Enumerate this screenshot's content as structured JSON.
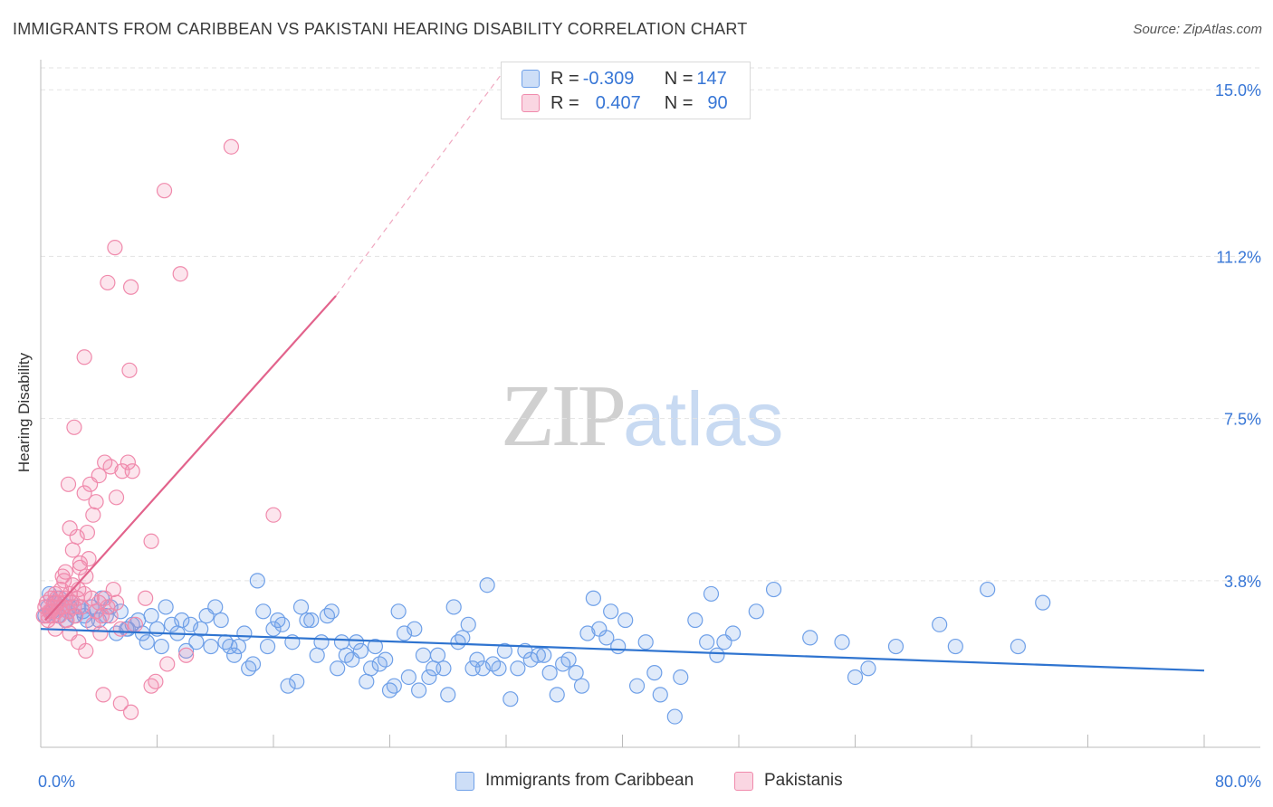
{
  "title": "IMMIGRANTS FROM CARIBBEAN VS PAKISTANI HEARING DISABILITY CORRELATION CHART",
  "source": "Source: ZipAtlas.com",
  "watermark": {
    "zip": "ZIP",
    "atlas": "atlas"
  },
  "colors": {
    "blue": "#6fa0e8",
    "blue_line": "#2f74d0",
    "pink": "#f08aac",
    "pink_line": "#e2638c",
    "axis_text": "#3776d6"
  },
  "legend": {
    "rows": [
      {
        "r_label": "R = ",
        "r_value": "-0.309",
        "n_label": "N = ",
        "n_value": "147"
      },
      {
        "r_label": "R = ",
        "r_value": "0.407",
        "n_label": "N = ",
        "n_value": "90"
      }
    ]
  },
  "bottom_legend": [
    "Immigrants from Caribbean",
    "Pakistanis"
  ],
  "chart_data": {
    "type": "scatter",
    "xlabel": "",
    "ylabel": "Hearing Disability",
    "xlim": [
      0,
      80
    ],
    "ylim": [
      0,
      15.5
    ],
    "x_tick_labels": [
      "0.0%",
      "80.0%"
    ],
    "y_ticks": [
      3.8,
      7.5,
      11.2,
      15.0
    ],
    "y_tick_labels": [
      "3.8%",
      "7.5%",
      "11.2%",
      "15.0%"
    ],
    "grid": true,
    "series": [
      {
        "name": "Immigrants from Caribbean",
        "color": "#6fa0e8",
        "r": -0.309,
        "n": 147,
        "trend": {
          "x": [
            0,
            80
          ],
          "y": [
            2.7,
            1.75
          ],
          "dashed_after": null
        },
        "points": [
          [
            0.3,
            3.0
          ],
          [
            0.5,
            3.2
          ],
          [
            0.6,
            3.5
          ],
          [
            0.8,
            3.1
          ],
          [
            1.0,
            3.3
          ],
          [
            1.2,
            3.0
          ],
          [
            1.3,
            3.4
          ],
          [
            1.5,
            3.2
          ],
          [
            1.7,
            2.9
          ],
          [
            1.9,
            3.1
          ],
          [
            2.1,
            3.3
          ],
          [
            2.3,
            3.0
          ],
          [
            2.6,
            3.2
          ],
          [
            2.9,
            3.1
          ],
          [
            3.2,
            2.9
          ],
          [
            3.5,
            3.2
          ],
          [
            3.8,
            3.1
          ],
          [
            4.2,
            3.4
          ],
          [
            4.5,
            3.0
          ],
          [
            4.8,
            3.2
          ],
          [
            5.2,
            2.6
          ],
          [
            5.5,
            3.1
          ],
          [
            5.9,
            2.7
          ],
          [
            6.3,
            2.8
          ],
          [
            6.7,
            2.9
          ],
          [
            7.0,
            2.6
          ],
          [
            7.3,
            2.4
          ],
          [
            7.6,
            3.0
          ],
          [
            8.0,
            2.7
          ],
          [
            8.3,
            2.3
          ],
          [
            8.6,
            3.2
          ],
          [
            9.0,
            2.8
          ],
          [
            9.4,
            2.6
          ],
          [
            9.7,
            2.9
          ],
          [
            10.0,
            2.2
          ],
          [
            10.3,
            2.8
          ],
          [
            10.7,
            2.4
          ],
          [
            11.0,
            2.7
          ],
          [
            11.4,
            3.0
          ],
          [
            11.7,
            2.3
          ],
          [
            12.0,
            3.2
          ],
          [
            12.4,
            2.9
          ],
          [
            12.7,
            2.4
          ],
          [
            13.0,
            2.3
          ],
          [
            13.3,
            2.1
          ],
          [
            13.6,
            2.3
          ],
          [
            14.0,
            2.6
          ],
          [
            14.3,
            1.8
          ],
          [
            14.6,
            1.9
          ],
          [
            14.9,
            3.8
          ],
          [
            15.3,
            3.1
          ],
          [
            15.6,
            2.3
          ],
          [
            16.0,
            2.7
          ],
          [
            16.3,
            2.9
          ],
          [
            16.6,
            2.8
          ],
          [
            17.0,
            1.4
          ],
          [
            17.3,
            2.4
          ],
          [
            17.6,
            1.5
          ],
          [
            17.9,
            3.2
          ],
          [
            18.3,
            2.9
          ],
          [
            18.6,
            2.9
          ],
          [
            19.0,
            2.1
          ],
          [
            19.3,
            2.4
          ],
          [
            19.7,
            3.0
          ],
          [
            20.0,
            3.1
          ],
          [
            20.4,
            1.8
          ],
          [
            20.7,
            2.4
          ],
          [
            21.0,
            2.1
          ],
          [
            21.4,
            2.0
          ],
          [
            21.7,
            2.4
          ],
          [
            22.0,
            2.2
          ],
          [
            22.4,
            1.5
          ],
          [
            22.7,
            1.8
          ],
          [
            23.0,
            2.3
          ],
          [
            23.3,
            1.9
          ],
          [
            23.7,
            2.0
          ],
          [
            24.0,
            1.3
          ],
          [
            24.3,
            1.4
          ],
          [
            24.6,
            3.1
          ],
          [
            25.0,
            2.6
          ],
          [
            25.3,
            1.6
          ],
          [
            25.7,
            2.7
          ],
          [
            26.0,
            1.3
          ],
          [
            26.3,
            2.1
          ],
          [
            26.7,
            1.6
          ],
          [
            27.0,
            1.8
          ],
          [
            27.3,
            2.1
          ],
          [
            27.7,
            1.8
          ],
          [
            28.0,
            1.2
          ],
          [
            28.4,
            3.2
          ],
          [
            28.7,
            2.4
          ],
          [
            29.0,
            2.5
          ],
          [
            29.4,
            2.8
          ],
          [
            29.7,
            1.8
          ],
          [
            30.0,
            2.0
          ],
          [
            30.4,
            1.8
          ],
          [
            30.7,
            3.7
          ],
          [
            31.1,
            1.9
          ],
          [
            31.5,
            1.8
          ],
          [
            31.9,
            2.2
          ],
          [
            32.3,
            1.1
          ],
          [
            32.8,
            1.8
          ],
          [
            33.3,
            2.2
          ],
          [
            33.7,
            2.0
          ],
          [
            34.2,
            2.1
          ],
          [
            34.6,
            2.1
          ],
          [
            35.0,
            1.7
          ],
          [
            35.5,
            1.2
          ],
          [
            35.9,
            1.9
          ],
          [
            36.3,
            2.0
          ],
          [
            36.8,
            1.7
          ],
          [
            37.2,
            1.4
          ],
          [
            37.6,
            2.6
          ],
          [
            38.0,
            3.4
          ],
          [
            38.4,
            2.7
          ],
          [
            38.9,
            2.5
          ],
          [
            39.2,
            3.1
          ],
          [
            39.7,
            2.3
          ],
          [
            40.2,
            2.9
          ],
          [
            41.0,
            1.4
          ],
          [
            41.6,
            2.4
          ],
          [
            42.2,
            1.7
          ],
          [
            42.6,
            1.2
          ],
          [
            43.6,
            0.7
          ],
          [
            44.0,
            1.6
          ],
          [
            45.0,
            2.9
          ],
          [
            45.8,
            2.4
          ],
          [
            46.1,
            3.5
          ],
          [
            46.5,
            2.1
          ],
          [
            47.0,
            2.4
          ],
          [
            47.6,
            2.6
          ],
          [
            49.2,
            3.1
          ],
          [
            50.4,
            3.6
          ],
          [
            52.9,
            2.5
          ],
          [
            55.1,
            2.4
          ],
          [
            56.0,
            1.6
          ],
          [
            56.9,
            1.8
          ],
          [
            58.8,
            2.3
          ],
          [
            61.8,
            2.8
          ],
          [
            65.1,
            3.6
          ],
          [
            67.2,
            2.3
          ],
          [
            68.9,
            3.3
          ],
          [
            62.9,
            2.3
          ],
          [
            2.0,
            3.2
          ],
          [
            3.0,
            3.0
          ],
          [
            4.0,
            2.9
          ],
          [
            6.0,
            2.7
          ]
        ]
      },
      {
        "name": "Pakistanis",
        "color": "#f08aac",
        "r": 0.407,
        "n": 90,
        "trend": {
          "x": [
            0.3,
            20.3
          ],
          "y": [
            2.9,
            10.3
          ],
          "dashed_to": [
            32.0,
            15.5
          ]
        },
        "points": [
          [
            0.2,
            3.0
          ],
          [
            0.3,
            3.2
          ],
          [
            0.4,
            3.3
          ],
          [
            0.5,
            2.9
          ],
          [
            0.6,
            3.1
          ],
          [
            0.7,
            3.4
          ],
          [
            0.8,
            3.0
          ],
          [
            0.9,
            3.2
          ],
          [
            1.0,
            3.5
          ],
          [
            1.1,
            3.1
          ],
          [
            1.2,
            3.3
          ],
          [
            1.3,
            3.0
          ],
          [
            1.4,
            3.6
          ],
          [
            1.5,
            3.2
          ],
          [
            1.6,
            3.8
          ],
          [
            1.7,
            3.4
          ],
          [
            1.8,
            2.9
          ],
          [
            1.9,
            3.1
          ],
          [
            2.0,
            3.5
          ],
          [
            2.1,
            3.3
          ],
          [
            2.2,
            3.7
          ],
          [
            2.3,
            3.2
          ],
          [
            2.4,
            3.0
          ],
          [
            2.5,
            3.4
          ],
          [
            2.6,
            3.6
          ],
          [
            2.7,
            4.1
          ],
          [
            2.8,
            3.2
          ],
          [
            3.0,
            3.5
          ],
          [
            3.1,
            3.9
          ],
          [
            3.3,
            4.3
          ],
          [
            3.5,
            3.4
          ],
          [
            3.6,
            2.8
          ],
          [
            3.8,
            3.1
          ],
          [
            4.0,
            3.3
          ],
          [
            4.2,
            3.0
          ],
          [
            4.4,
            3.4
          ],
          [
            4.6,
            3.2
          ],
          [
            4.8,
            3.0
          ],
          [
            5.0,
            3.6
          ],
          [
            5.2,
            3.3
          ],
          [
            0.5,
            3.0
          ],
          [
            0.7,
            3.1
          ],
          [
            0.9,
            3.3
          ],
          [
            1.1,
            3.4
          ],
          [
            1.3,
            3.2
          ],
          [
            1.5,
            3.9
          ],
          [
            1.7,
            4.0
          ],
          [
            2.0,
            5.0
          ],
          [
            2.2,
            4.5
          ],
          [
            2.5,
            4.8
          ],
          [
            2.7,
            4.2
          ],
          [
            3.0,
            5.8
          ],
          [
            3.2,
            4.9
          ],
          [
            3.4,
            6.0
          ],
          [
            3.6,
            5.3
          ],
          [
            3.8,
            5.6
          ],
          [
            4.0,
            6.2
          ],
          [
            4.4,
            6.5
          ],
          [
            4.8,
            6.4
          ],
          [
            5.2,
            5.7
          ],
          [
            5.6,
            6.3
          ],
          [
            6.0,
            6.5
          ],
          [
            6.3,
            6.3
          ],
          [
            1.9,
            6.0
          ],
          [
            2.3,
            7.3
          ],
          [
            3.0,
            8.9
          ],
          [
            2.6,
            2.4
          ],
          [
            3.1,
            2.2
          ],
          [
            4.1,
            2.6
          ],
          [
            5.5,
            2.7
          ],
          [
            6.5,
            2.8
          ],
          [
            7.2,
            3.4
          ],
          [
            7.6,
            4.7
          ],
          [
            4.3,
            1.2
          ],
          [
            4.6,
            10.6
          ],
          [
            5.1,
            11.4
          ],
          [
            6.2,
            10.5
          ],
          [
            6.1,
            8.6
          ],
          [
            8.5,
            12.7
          ],
          [
            9.6,
            10.8
          ],
          [
            10.0,
            2.1
          ],
          [
            8.7,
            1.9
          ],
          [
            7.6,
            1.4
          ],
          [
            7.9,
            1.5
          ],
          [
            5.5,
            1.0
          ],
          [
            6.2,
            0.8
          ],
          [
            13.1,
            13.7
          ],
          [
            16.0,
            5.3
          ],
          [
            1.0,
            2.7
          ],
          [
            2.0,
            2.6
          ]
        ]
      }
    ]
  }
}
